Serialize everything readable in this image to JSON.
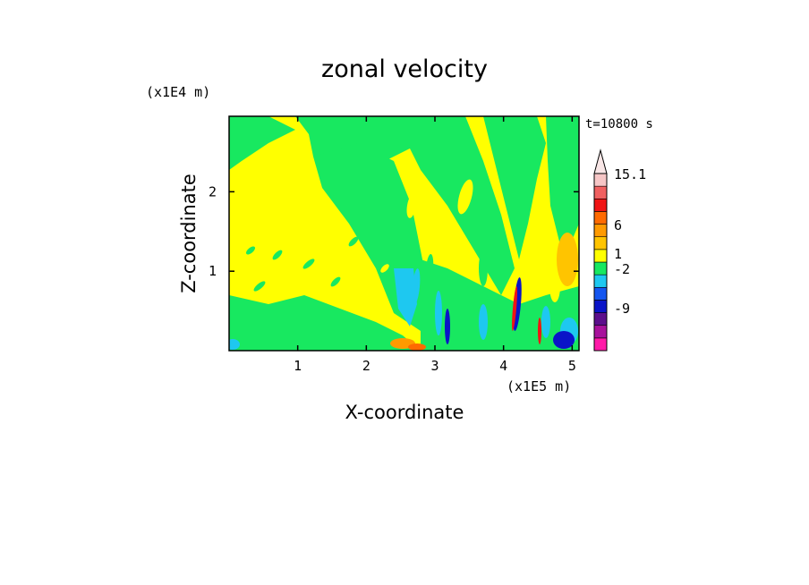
{
  "chart_data": {
    "type": "heatmap",
    "title": "zonal velocity",
    "xlabel": "X-coordinate",
    "ylabel": "Z-coordinate",
    "x_unit": "(x1E5 m)",
    "y_unit": "(x1E4 m)",
    "time_label": "t=10800 s",
    "xlim": [
      0,
      5.1
    ],
    "ylim": [
      0,
      2.95
    ],
    "x_ticks": [
      "1",
      "2",
      "3",
      "4",
      "5"
    ],
    "y_ticks": [
      "1",
      "2"
    ],
    "colorbar": {
      "labels": [
        "15.1",
        "6",
        "1",
        "-2",
        "-9"
      ],
      "levels": [
        {
          "color": "#ff1aa8"
        },
        {
          "color": "#a8129c"
        },
        {
          "color": "#5c0f8c"
        },
        {
          "color": "#0a14c8"
        },
        {
          "color": "#1456f0"
        },
        {
          "color": "#1ec8f0"
        },
        {
          "color": "#18e860"
        },
        {
          "color": "#ffff00"
        },
        {
          "color": "#ffc400"
        },
        {
          "color": "#ff9a00"
        },
        {
          "color": "#ff6a00"
        },
        {
          "color": "#f01414"
        },
        {
          "color": "#f06060"
        },
        {
          "color": "#f6c6c6"
        }
      ],
      "extend_max": true
    }
  }
}
